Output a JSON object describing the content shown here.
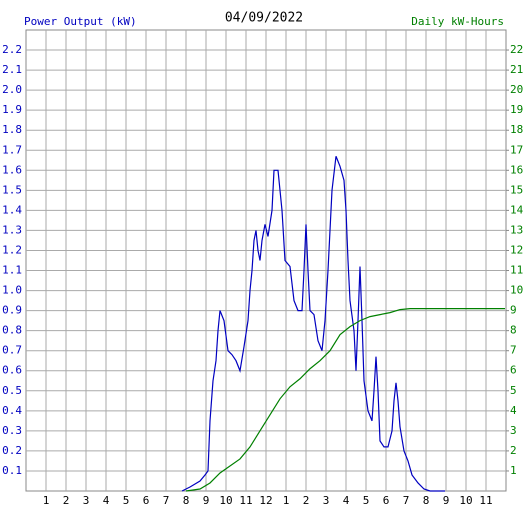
{
  "chart_data": {
    "type": "line",
    "title": "04/09/2022",
    "ylabel": "Power Output (kW)",
    "y2label": "Daily kW-Hours",
    "xlim": [
      0,
      24
    ],
    "xticks": [
      1,
      2,
      3,
      4,
      5,
      6,
      7,
      8,
      9,
      10,
      11,
      12,
      {
        "value": 13,
        "label": "1"
      },
      {
        "value": 14,
        "label": "2"
      },
      {
        "value": 15,
        "label": "3"
      },
      {
        "value": 16,
        "label": "4"
      },
      {
        "value": 17,
        "label": "5"
      },
      {
        "value": 18,
        "label": "6"
      },
      {
        "value": 19,
        "label": "7"
      },
      {
        "value": 20,
        "label": "8"
      },
      {
        "value": 21,
        "label": "9"
      },
      {
        "value": 22,
        "label": "10"
      },
      {
        "value": 23,
        "label": "11"
      }
    ],
    "ylim": [
      0,
      2.3
    ],
    "yticks": [
      0.1,
      0.2,
      0.3,
      0.4,
      0.5,
      0.6,
      0.7,
      0.8,
      0.9,
      {
        "value": 1,
        "label": "1.0"
      },
      1.1,
      1.2,
      1.3,
      1.4,
      1.5,
      1.6,
      1.7,
      1.8,
      1.9,
      {
        "value": 2,
        "label": "2.0"
      },
      2.1,
      2.2
    ],
    "y2lim": [
      0,
      23
    ],
    "y2ticks": [
      1,
      2,
      3,
      4,
      5,
      6,
      7,
      8,
      9,
      10,
      11,
      12,
      13,
      14,
      15,
      16,
      17,
      18,
      19,
      20,
      21,
      22
    ],
    "grid": true,
    "series": [
      {
        "color": "#0000c0",
        "axis": "y",
        "x": [
          7.8,
          8.2,
          8.7,
          8.95,
          9.1,
          9.2,
          9.35,
          9.5,
          9.6,
          9.7,
          9.9,
          10.1,
          10.3,
          10.5,
          10.7,
          10.9,
          11.1,
          11.2,
          11.3,
          11.4,
          11.5,
          11.6,
          11.7,
          11.8,
          11.95,
          12.1,
          12.3,
          12.4,
          12.6,
          12.7,
          12.8,
          12.95,
          13.2,
          13.4,
          13.6,
          13.8,
          13.9,
          14,
          14.1,
          14.2,
          14.4,
          14.6,
          14.8,
          14.95,
          15.1,
          15.3,
          15.5,
          15.7,
          15.9,
          16,
          16.1,
          16.2,
          16.4,
          16.5,
          16.6,
          16.7,
          16.8,
          16.9,
          17.1,
          17.3,
          17.4,
          17.5,
          17.6,
          17.7,
          17.9,
          18.1,
          18.3,
          18.4,
          18.5,
          18.6,
          18.7,
          18.9,
          19.1,
          19.3,
          19.6,
          19.9,
          20.2,
          20.95
        ],
        "values": [
          0,
          0.02,
          0.05,
          0.08,
          0.1,
          0.35,
          0.55,
          0.65,
          0.8,
          0.9,
          0.85,
          0.7,
          0.68,
          0.65,
          0.6,
          0.72,
          0.85,
          1.0,
          1.1,
          1.25,
          1.3,
          1.2,
          1.15,
          1.25,
          1.33,
          1.27,
          1.4,
          1.6,
          1.6,
          1.5,
          1.4,
          1.15,
          1.12,
          0.95,
          0.9,
          0.9,
          1.1,
          1.33,
          1.1,
          0.9,
          0.88,
          0.75,
          0.7,
          0.85,
          1.1,
          1.5,
          1.67,
          1.62,
          1.55,
          1.4,
          1.15,
          0.95,
          0.8,
          0.6,
          0.85,
          1.12,
          0.85,
          0.55,
          0.4,
          0.35,
          0.5,
          0.67,
          0.5,
          0.25,
          0.22,
          0.22,
          0.3,
          0.45,
          0.54,
          0.45,
          0.32,
          0.2,
          0.15,
          0.08,
          0.04,
          0.01,
          0,
          0
        ]
      },
      {
        "color": "#008000",
        "axis": "y2",
        "x": [
          8,
          8.7,
          9.2,
          9.7,
          10.7,
          11.2,
          11.7,
          12.2,
          12.7,
          13.2,
          13.7,
          14.2,
          14.7,
          15.2,
          15.7,
          16.2,
          16.7,
          17.2,
          17.7,
          18.2,
          18.7,
          19.2,
          19.7,
          23.95
        ],
        "values": [
          0,
          0.1,
          0.4,
          0.9,
          1.6,
          2.2,
          3,
          3.8,
          4.6,
          5.2,
          5.6,
          6.1,
          6.5,
          7,
          7.8,
          8.2,
          8.5,
          8.7,
          8.8,
          8.9,
          9.05,
          9.1,
          9.1,
          9.1
        ]
      }
    ]
  }
}
